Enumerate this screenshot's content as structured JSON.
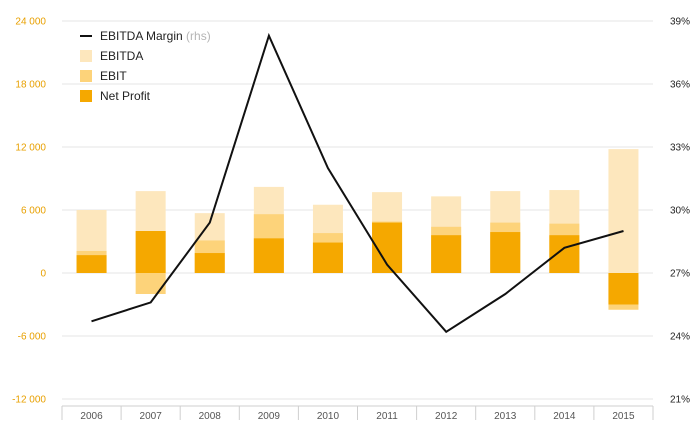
{
  "chart_data": {
    "type": "bar",
    "categories": [
      "2006",
      "2007",
      "2008",
      "2009",
      "2010",
      "2011",
      "2012",
      "2013",
      "2014",
      "2015"
    ],
    "series": [
      {
        "name": "EBITDA",
        "kind": "bar",
        "axis": "left",
        "color": "#fde7bd",
        "values": [
          6000,
          7800,
          5700,
          8200,
          6500,
          7700,
          7300,
          7800,
          7900,
          11800
        ]
      },
      {
        "name": "EBIT",
        "kind": "bar",
        "axis": "left",
        "color": "#fdd37a",
        "values": [
          2100,
          -2000,
          3100,
          5600,
          3800,
          4900,
          4400,
          4800,
          4700,
          -3500
        ]
      },
      {
        "name": "Net Profit",
        "kind": "bar",
        "axis": "left",
        "color": "#f5a800",
        "values": [
          1700,
          4000,
          1900,
          3300,
          2900,
          4800,
          3600,
          3900,
          3600,
          -3000
        ]
      },
      {
        "name": "EBITDA Margin",
        "kind": "line",
        "axis": "right",
        "color": "#111111",
        "values": [
          24.7,
          25.6,
          29.4,
          38.3,
          32.0,
          27.4,
          24.2,
          26.0,
          28.2,
          29.0
        ]
      }
    ],
    "legend": {
      "position": "top-left",
      "rhs_suffix": "(rhs)"
    },
    "y_left": {
      "ylim": [
        -12000,
        24000
      ],
      "ticks": [
        -12000,
        -6000,
        0,
        6000,
        12000,
        18000,
        24000
      ],
      "tick_labels": [
        "-12 000",
        "-6 000",
        "0",
        "6 000",
        "12 000",
        "18 000",
        "24 000"
      ],
      "color": "#e8a000"
    },
    "y_right": {
      "ylim": [
        21,
        39
      ],
      "ticks": [
        21,
        24,
        27,
        30,
        33,
        36,
        39
      ],
      "tick_labels": [
        "21%",
        "24%",
        "27%",
        "30%",
        "33%",
        "36%",
        "39%"
      ]
    },
    "grid": true
  }
}
